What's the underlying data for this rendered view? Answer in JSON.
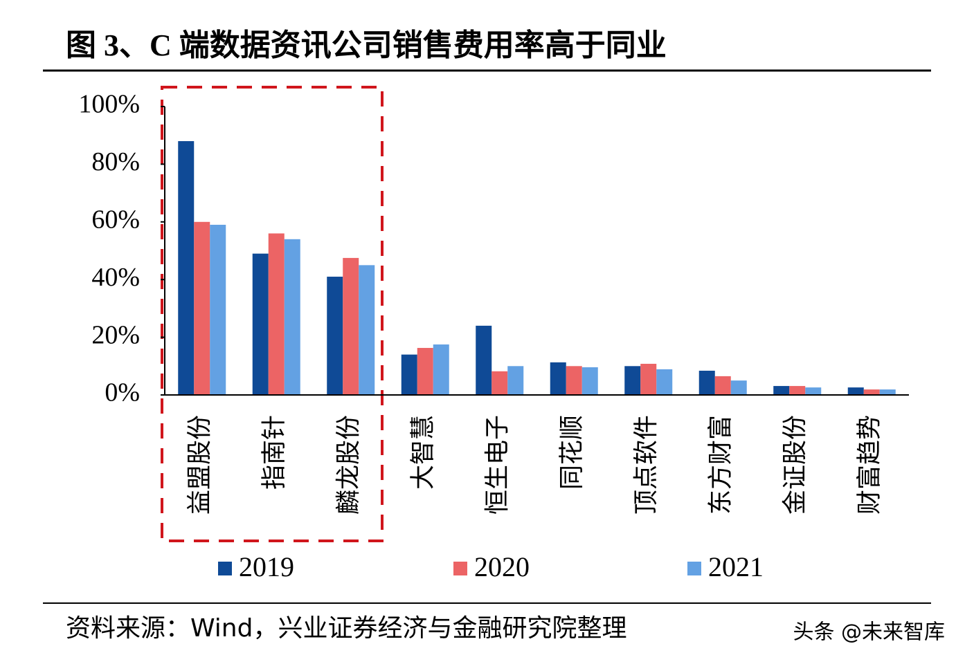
{
  "chart_data": {
    "type": "bar",
    "title": "图 3、C 端数据资讯公司销售费用率高于同业",
    "source": "资料来源：Wind，兴业证券经济与金融研究院整理",
    "watermark": "头条 @未来智库",
    "categories": [
      "益盟股份",
      "指南针",
      "麟龙股份",
      "大智慧",
      "恒生电子",
      "同花顺",
      "顶点软件",
      "东方财富",
      "金证股份",
      "财富趋势"
    ],
    "series": [
      {
        "name": "2019",
        "color": "#0f4a96",
        "values": [
          88,
          49,
          41,
          14,
          24,
          11.3,
          10,
          8.4,
          3.1,
          2.6
        ]
      },
      {
        "name": "2020",
        "color": "#ec6465",
        "values": [
          60,
          56,
          47.5,
          16.3,
          8.2,
          10,
          10.8,
          6.5,
          3.1,
          1.9
        ]
      },
      {
        "name": "2021",
        "color": "#63a1e3",
        "values": [
          59,
          54,
          45,
          17.5,
          10,
          9.6,
          8.9,
          5,
          2.6,
          1.9
        ]
      }
    ],
    "ylim": [
      0,
      100
    ],
    "yticks": [
      {
        "value": 0,
        "label": "0%"
      },
      {
        "value": 20,
        "label": "20%"
      },
      {
        "value": 40,
        "label": "40%"
      },
      {
        "value": 60,
        "label": "60%"
      },
      {
        "value": 80,
        "label": "80%"
      },
      {
        "value": 100,
        "label": "100%"
      }
    ]
  }
}
